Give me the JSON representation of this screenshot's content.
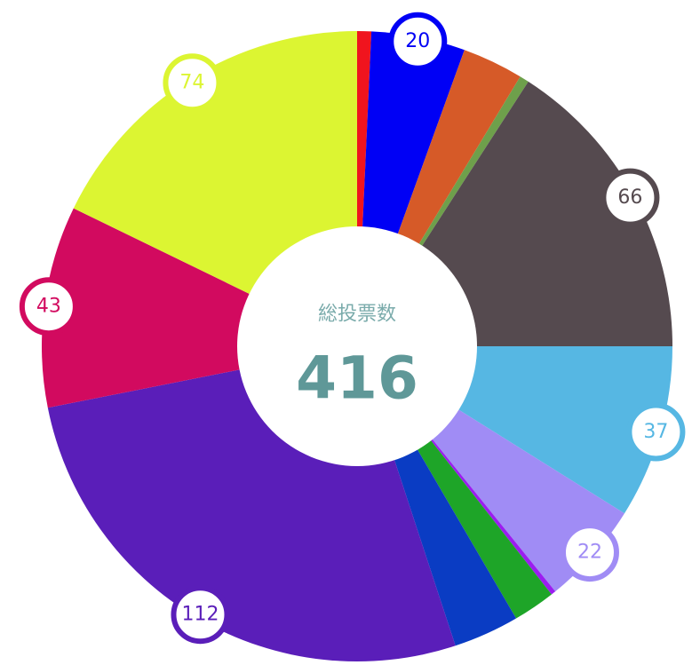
{
  "chart_data": {
    "type": "donut",
    "values": [
      3,
      20,
      13,
      2,
      66,
      37,
      22,
      1,
      9,
      14,
      112,
      43,
      74
    ],
    "value_labels": [
      null,
      "20",
      null,
      null,
      "66",
      "37",
      "22",
      null,
      null,
      null,
      "112",
      "43",
      "74"
    ],
    "colors": [
      "#f0141e",
      "#0000f5",
      "#d65a28",
      "#6ea04b",
      "#554a4f",
      "#56b7e3",
      "#a08cf5",
      "#9b1ef0",
      "#1ea528",
      "#0a3cc3",
      "#5a1eb9",
      "#d20a5f",
      "#dcf532"
    ],
    "center_title": "総投票数",
    "center_value": "416"
  }
}
